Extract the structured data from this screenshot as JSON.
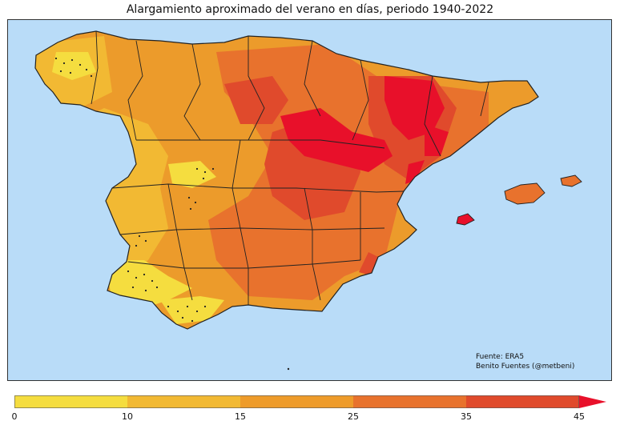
{
  "title": "Alargamiento aproximado del verano en días, periodo 1940-2022",
  "source_lines": [
    "Fuente: ERA5",
    "Benito Fuentes (@metbeni)"
  ],
  "colors": {
    "sea": "#b9dcf8",
    "land_base": "#ec9b2b",
    "border": "#222222"
  },
  "legend": {
    "ticks": [
      "0",
      "10",
      "15",
      "25",
      "35",
      "45"
    ],
    "bins": [
      {
        "from": 0,
        "to": 10,
        "color": "#f5dd3f"
      },
      {
        "from": 10,
        "to": 15,
        "color": "#f2b933"
      },
      {
        "from": 15,
        "to": 25,
        "color": "#ee9b2a"
      },
      {
        "from": 25,
        "to": 35,
        "color": "#e8722d"
      },
      {
        "from": 35,
        "to": 45,
        "color": "#e04a2c"
      }
    ],
    "extend_color": "#e8102a"
  },
  "map_features": [
    {
      "name": "iberian-peninsula",
      "kind": "land"
    },
    {
      "name": "mallorca",
      "kind": "land"
    },
    {
      "name": "menorca",
      "kind": "land"
    },
    {
      "name": "ibiza",
      "kind": "land"
    },
    {
      "name": "ebro-valley-hotspot",
      "kind": "zone",
      "class": "extend"
    },
    {
      "name": "northeast-hotspot",
      "kind": "zone",
      "class": "extend"
    }
  ]
}
